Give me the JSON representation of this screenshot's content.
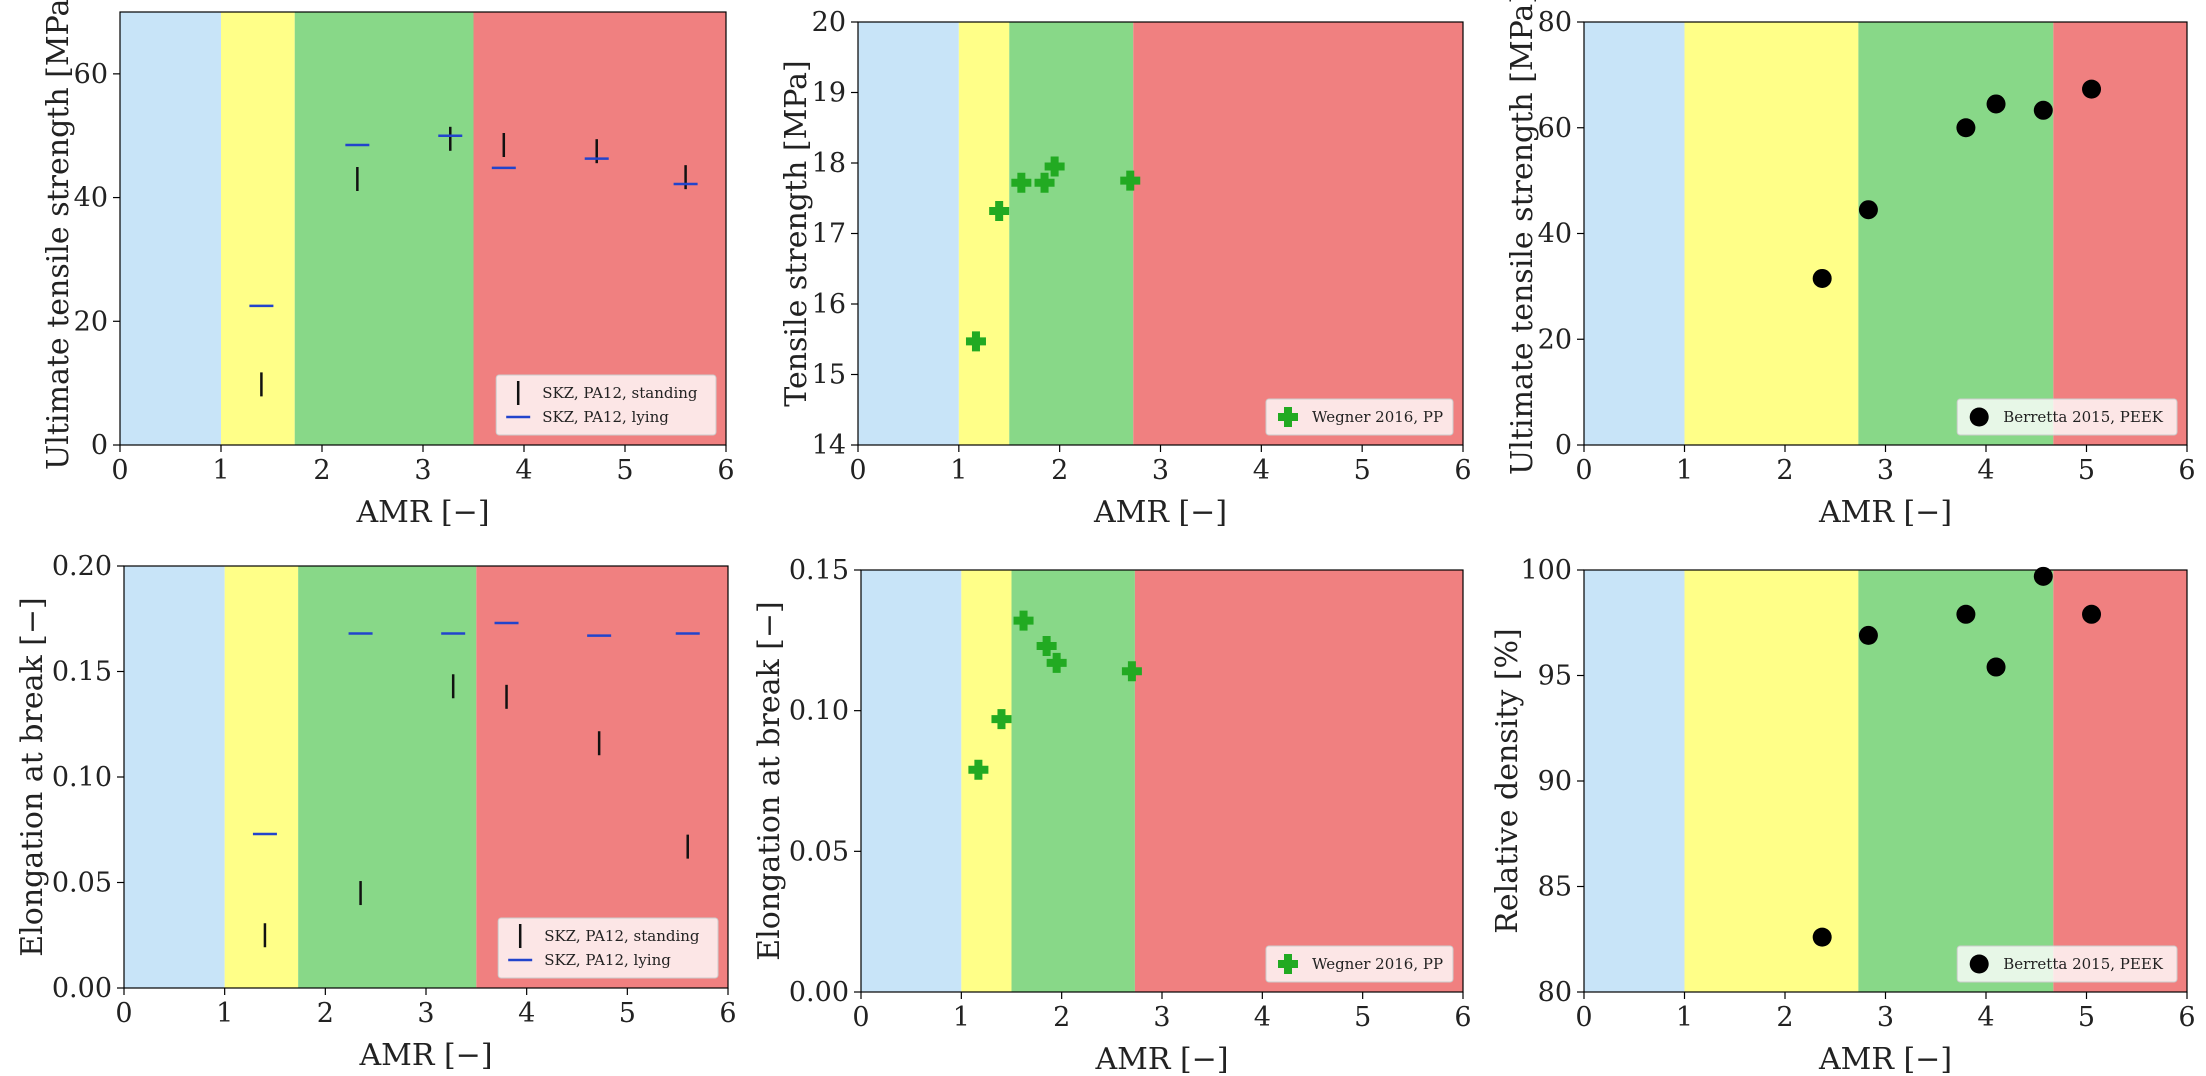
{
  "chart_data": [
    {
      "type": "scatter",
      "xlabel": "AMR [−]",
      "ylabel": "Ultimate tensile strength [MPa]",
      "xlim": [
        0,
        6
      ],
      "ylim": [
        0,
        70
      ],
      "xticks": [
        "0",
        "1",
        "2",
        "3",
        "4",
        "5",
        "6"
      ],
      "yticks": [
        "0",
        "20",
        "40",
        "60"
      ],
      "ytick_values": [
        0,
        20,
        40,
        60
      ],
      "bands": [
        {
          "from": 0,
          "to": 1.0,
          "color": "#c8e4f8"
        },
        {
          "from": 1.0,
          "to": 1.73,
          "color": "#ffff88"
        },
        {
          "from": 1.73,
          "to": 3.5,
          "color": "#88d888"
        },
        {
          "from": 3.5,
          "to": 6,
          "color": "#f08080"
        }
      ],
      "legend_position": "lower-right",
      "series": [
        {
          "name": "SKZ, PA12, standing",
          "marker": "vline",
          "color": "#111111",
          "points": [
            [
              1.4,
              9.8
            ],
            [
              2.35,
              43.0
            ],
            [
              3.27,
              49.5
            ],
            [
              3.8,
              48.5
            ],
            [
              4.72,
              47.5
            ],
            [
              5.6,
              43.3
            ]
          ]
        },
        {
          "name": "SKZ, PA12, lying",
          "marker": "hline",
          "color": "#2244cc",
          "points": [
            [
              1.4,
              22.5
            ],
            [
              2.35,
              48.5
            ],
            [
              3.27,
              50.0
            ],
            [
              3.8,
              44.8
            ],
            [
              4.72,
              46.3
            ],
            [
              5.6,
              42.2
            ]
          ]
        }
      ]
    },
    {
      "type": "scatter",
      "xlabel": "AMR [−]",
      "ylabel": "Tensile strength [MPa]",
      "xlim": [
        0,
        6
      ],
      "ylim": [
        14,
        20
      ],
      "xticks": [
        "0",
        "1",
        "2",
        "3",
        "4",
        "5",
        "6"
      ],
      "yticks": [
        "14",
        "15",
        "16",
        "17",
        "18",
        "19",
        "20"
      ],
      "ytick_values": [
        14,
        15,
        16,
        17,
        18,
        19,
        20
      ],
      "bands": [
        {
          "from": 0,
          "to": 1.0,
          "color": "#c8e4f8"
        },
        {
          "from": 1.0,
          "to": 1.5,
          "color": "#ffff88"
        },
        {
          "from": 1.5,
          "to": 2.73,
          "color": "#88d888"
        },
        {
          "from": 2.73,
          "to": 6,
          "color": "#f08080"
        }
      ],
      "legend_position": "lower-right",
      "series": [
        {
          "name": "Wegner 2016, PP",
          "marker": "plus",
          "color": "#22aa22",
          "points": [
            [
              1.17,
              15.47
            ],
            [
              1.4,
              17.32
            ],
            [
              1.62,
              17.72
            ],
            [
              1.85,
              17.72
            ],
            [
              1.95,
              17.95
            ],
            [
              2.7,
              17.75
            ]
          ]
        }
      ]
    },
    {
      "type": "scatter",
      "xlabel": "AMR [−]",
      "ylabel": "Ultimate tensile strength [MPa]",
      "xlim": [
        0,
        6
      ],
      "ylim": [
        0,
        80
      ],
      "xticks": [
        "0",
        "1",
        "2",
        "3",
        "4",
        "5",
        "6"
      ],
      "yticks": [
        "0",
        "20",
        "40",
        "60",
        "80"
      ],
      "ytick_values": [
        0,
        20,
        40,
        60,
        80
      ],
      "bands": [
        {
          "from": 0,
          "to": 1.0,
          "color": "#c8e4f8"
        },
        {
          "from": 1.0,
          "to": 2.73,
          "color": "#ffff88"
        },
        {
          "from": 2.73,
          "to": 4.67,
          "color": "#88d888"
        },
        {
          "from": 4.67,
          "to": 6,
          "color": "#f08080"
        }
      ],
      "legend_position": "lower-right",
      "series": [
        {
          "name": "Berretta 2015, PEEK",
          "marker": "circle",
          "color": "#000000",
          "points": [
            [
              2.37,
              31.5
            ],
            [
              2.83,
              44.5
            ],
            [
              3.8,
              60.0
            ],
            [
              4.1,
              64.5
            ],
            [
              4.57,
              63.3
            ],
            [
              5.05,
              67.3
            ]
          ]
        }
      ]
    },
    {
      "type": "scatter",
      "xlabel": "AMR [−]",
      "ylabel": "Elongation at break [−]",
      "xlim": [
        0,
        6
      ],
      "ylim": [
        0,
        0.2
      ],
      "xticks": [
        "0",
        "1",
        "2",
        "3",
        "4",
        "5",
        "6"
      ],
      "yticks": [
        "0.00",
        "0.05",
        "0.10",
        "0.15",
        "0.20"
      ],
      "ytick_values": [
        0,
        0.05,
        0.1,
        0.15,
        0.2
      ],
      "bands": [
        {
          "from": 0,
          "to": 1.0,
          "color": "#c8e4f8"
        },
        {
          "from": 1.0,
          "to": 1.73,
          "color": "#ffff88"
        },
        {
          "from": 1.73,
          "to": 3.5,
          "color": "#88d888"
        },
        {
          "from": 3.5,
          "to": 6,
          "color": "#f08080"
        }
      ],
      "legend_position": "lower-right",
      "series": [
        {
          "name": "SKZ, PA12, standing",
          "marker": "vline",
          "color": "#111111",
          "points": [
            [
              1.4,
              0.025
            ],
            [
              2.35,
              0.045
            ],
            [
              3.27,
              0.143
            ],
            [
              3.8,
              0.138
            ],
            [
              4.72,
              0.116
            ],
            [
              5.6,
              0.067
            ]
          ]
        },
        {
          "name": "SKZ, PA12, lying",
          "marker": "hline",
          "color": "#2244cc",
          "points": [
            [
              1.4,
              0.073
            ],
            [
              2.35,
              0.168
            ],
            [
              3.27,
              0.168
            ],
            [
              3.8,
              0.173
            ],
            [
              4.72,
              0.167
            ],
            [
              5.6,
              0.168
            ]
          ]
        }
      ]
    },
    {
      "type": "scatter",
      "xlabel": "AMR [−]",
      "ylabel": "Elongation at break [−]",
      "xlim": [
        0,
        6
      ],
      "ylim": [
        0,
        0.15
      ],
      "xticks": [
        "0",
        "1",
        "2",
        "3",
        "4",
        "5",
        "6"
      ],
      "yticks": [
        "0.00",
        "0.05",
        "0.10",
        "0.15"
      ],
      "ytick_values": [
        0,
        0.05,
        0.1,
        0.15
      ],
      "bands": [
        {
          "from": 0,
          "to": 1.0,
          "color": "#c8e4f8"
        },
        {
          "from": 1.0,
          "to": 1.5,
          "color": "#ffff88"
        },
        {
          "from": 1.5,
          "to": 2.73,
          "color": "#88d888"
        },
        {
          "from": 2.73,
          "to": 6,
          "color": "#f08080"
        }
      ],
      "legend_position": "lower-right",
      "series": [
        {
          "name": "Wegner 2016, PP",
          "marker": "plus",
          "color": "#22aa22",
          "points": [
            [
              1.17,
              0.079
            ],
            [
              1.4,
              0.097
            ],
            [
              1.62,
              0.132
            ],
            [
              1.85,
              0.123
            ],
            [
              1.95,
              0.117
            ],
            [
              2.7,
              0.114
            ]
          ]
        }
      ]
    },
    {
      "type": "scatter",
      "xlabel": "AMR [−]",
      "ylabel": "Relative density [%]",
      "xlim": [
        0,
        6
      ],
      "ylim": [
        80,
        100
      ],
      "xticks": [
        "0",
        "1",
        "2",
        "3",
        "4",
        "5",
        "6"
      ],
      "yticks": [
        "80",
        "85",
        "90",
        "95",
        "100"
      ],
      "ytick_values": [
        80,
        85,
        90,
        95,
        100
      ],
      "bands": [
        {
          "from": 0,
          "to": 1.0,
          "color": "#c8e4f8"
        },
        {
          "from": 1.0,
          "to": 2.73,
          "color": "#ffff88"
        },
        {
          "from": 2.73,
          "to": 4.67,
          "color": "#88d888"
        },
        {
          "from": 4.67,
          "to": 6,
          "color": "#f08080"
        }
      ],
      "legend_position": "lower-right",
      "series": [
        {
          "name": "Berretta 2015, PEEK",
          "marker": "circle",
          "color": "#000000",
          "points": [
            [
              2.37,
              82.6
            ],
            [
              2.83,
              96.9
            ],
            [
              3.8,
              97.9
            ],
            [
              4.1,
              95.4
            ],
            [
              4.57,
              99.7
            ],
            [
              5.05,
              97.9
            ]
          ]
        }
      ]
    }
  ]
}
